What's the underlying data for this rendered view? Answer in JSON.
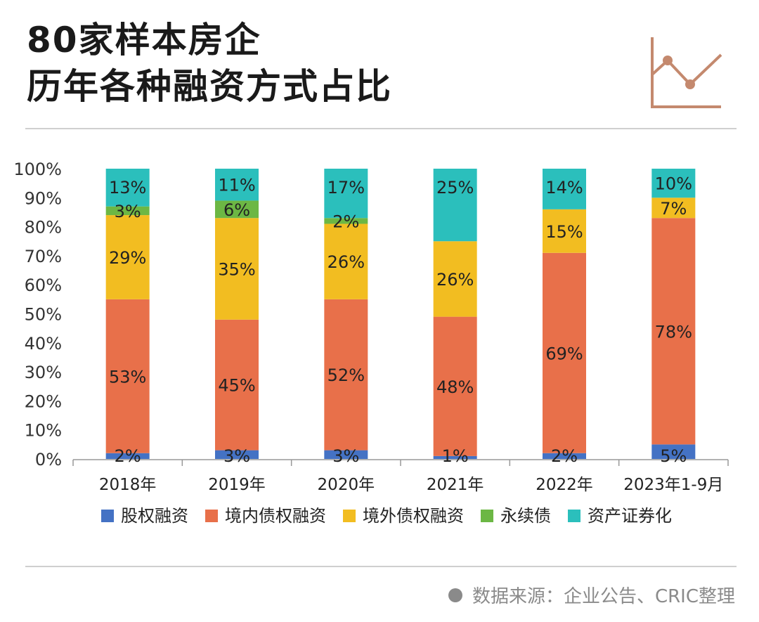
{
  "title_lines": [
    "80家样本房企",
    "历年各种融资方式占比"
  ],
  "source": "数据来源：企业公告、CRIC整理",
  "colors": {
    "股权融资": "#4472c4",
    "境内债权融资": "#e8704a",
    "境外债权融资": "#f2bd21",
    "永续债": "#6cb744",
    "资产证券化": "#2bbfbc",
    "logo": "#c4896e",
    "axis": "#999999"
  },
  "logo_icon": "line-chart-icon",
  "chart_data": {
    "type": "bar",
    "stacked": true,
    "categories": [
      "2018年",
      "2019年",
      "2020年",
      "2021年",
      "2022年",
      "2023年1-9月"
    ],
    "ylim": [
      0,
      100
    ],
    "yticks": [
      "0%",
      "10%",
      "20%",
      "30%",
      "40%",
      "50%",
      "60%",
      "70%",
      "80%",
      "90%",
      "100%"
    ],
    "legend_position": "bottom",
    "series": [
      {
        "name": "股权融资",
        "values": [
          2,
          3,
          3,
          1,
          2,
          5
        ],
        "labels": [
          "2%",
          "3%",
          "3%",
          "1%",
          "2%",
          "5%"
        ]
      },
      {
        "name": "境内债权融资",
        "values": [
          53,
          45,
          52,
          48,
          69,
          78
        ],
        "labels": [
          "53%",
          "45%",
          "52%",
          "48%",
          "69%",
          "78%"
        ]
      },
      {
        "name": "境外债权融资",
        "values": [
          29,
          35,
          26,
          26,
          15,
          7
        ],
        "labels": [
          "29%",
          "35%",
          "26%",
          "26%",
          "15%",
          "7%"
        ]
      },
      {
        "name": "永续债",
        "values": [
          3,
          6,
          2,
          0,
          0,
          0
        ],
        "labels": [
          "3%",
          "6%",
          "2%",
          "",
          "",
          ""
        ]
      },
      {
        "name": "资产证券化",
        "values": [
          13,
          11,
          17,
          25,
          14,
          10
        ],
        "labels": [
          "13%",
          "11%",
          "17%",
          "25%",
          "14%",
          "10%"
        ]
      }
    ]
  }
}
